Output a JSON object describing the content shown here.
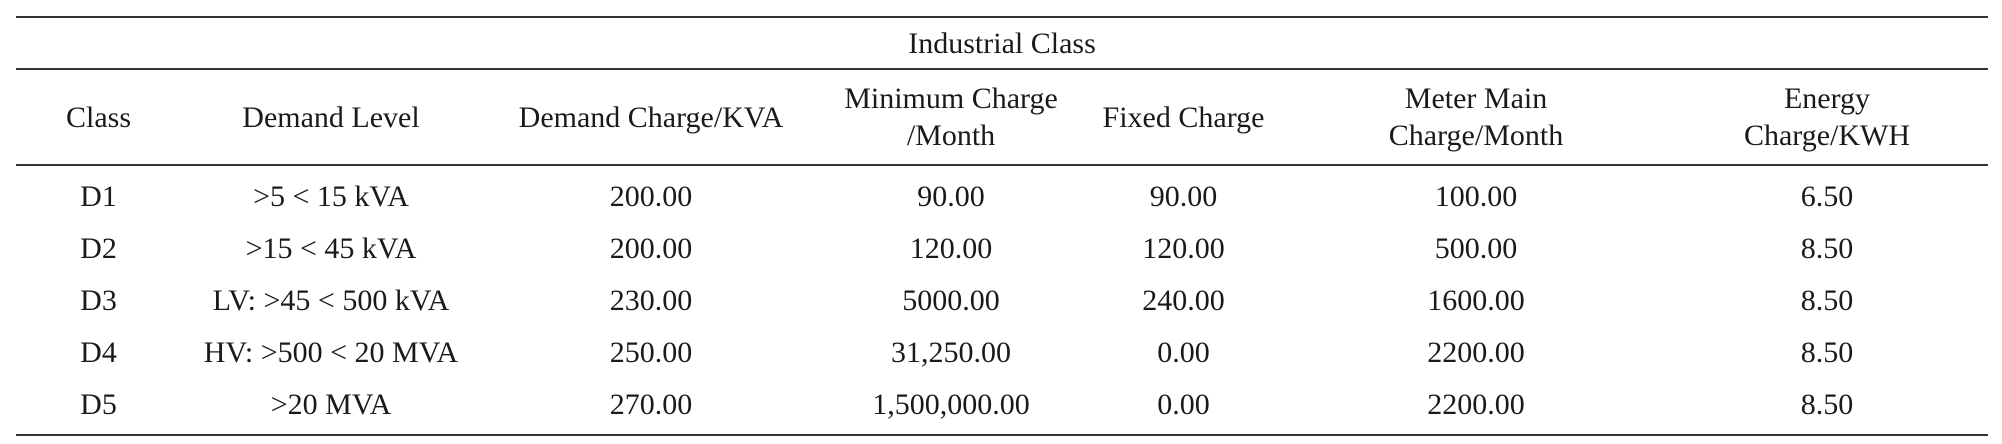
{
  "caption": "Industrial Class",
  "headers": [
    {
      "line1": "Class",
      "line2": ""
    },
    {
      "line1": "Demand Level",
      "line2": ""
    },
    {
      "line1": "Demand Charge/KVA",
      "line2": ""
    },
    {
      "line1": "Minimum Charge",
      "line2": "/Month"
    },
    {
      "line1": "Fixed Charge",
      "line2": ""
    },
    {
      "line1": "Meter Main",
      "line2": "Charge/Month"
    },
    {
      "line1": "Energy",
      "line2": "Charge/KWH"
    }
  ],
  "rows": [
    [
      "D1",
      ">5 < 15 kVA",
      "200.00",
      "90.00",
      "90.00",
      "100.00",
      "6.50"
    ],
    [
      "D2",
      ">15 < 45 kVA",
      "200.00",
      "120.00",
      "120.00",
      "500.00",
      "8.50"
    ],
    [
      "D3",
      "LV: >45 < 500 kVA",
      "230.00",
      "5000.00",
      "240.00",
      "1600.00",
      "8.50"
    ],
    [
      "D4",
      "HV: >500 < 20 MVA",
      "250.00",
      "31,250.00",
      "0.00",
      "2200.00",
      "8.50"
    ],
    [
      "D5",
      ">20 MVA",
      "270.00",
      "1,500,000.00",
      "0.00",
      "2200.00",
      "8.50"
    ]
  ]
}
